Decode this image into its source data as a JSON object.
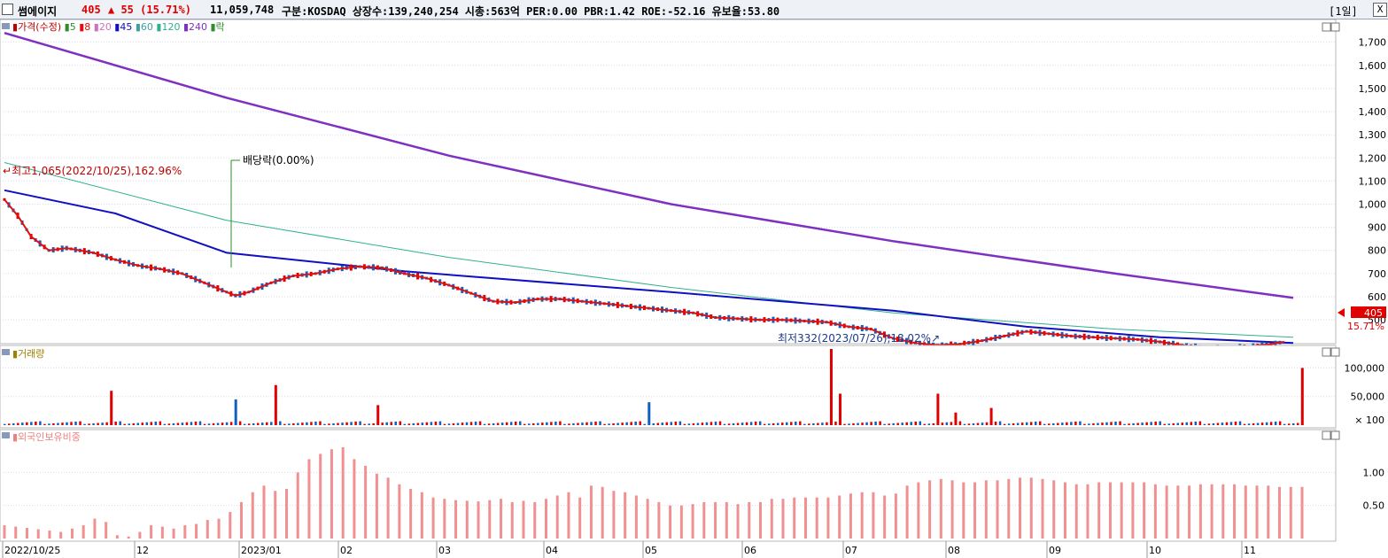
{
  "header": {
    "name": "썸에이지",
    "price": "405",
    "change": "▲ 55 (15.71%)",
    "volume": "11,059,748",
    "info": "구분:KOSDAQ 상장수:139,240,254 시총:563억 PER:0.00 PBR:1.42 ROE:-52.16 유보율:53.80",
    "period": "[1일]",
    "close_label": "X"
  },
  "legend": {
    "price": "가격(수정)",
    "ma": [
      {
        "label": "5",
        "color": "#2e8b2e"
      },
      {
        "label": "8",
        "color": "#e01010"
      },
      {
        "label": "20",
        "color": "#d070c0"
      },
      {
        "label": "45",
        "color": "#1010c0"
      },
      {
        "label": "60",
        "color": "#40a0a0"
      },
      {
        "label": "120",
        "color": "#30b090"
      },
      {
        "label": "240",
        "color": "#8030c0"
      }
    ],
    "ex_div": "락",
    "volume": "거래량",
    "foreign": "외국인보유비중"
  },
  "annotations": {
    "high": "최고1,065(2022/10/25),162.96%",
    "low": "최저332(2023/07/26),18.02%",
    "ex_dividend": "배당락(0.00%)",
    "current_price": "405",
    "current_change": "15.71%"
  },
  "chart_data": [
    {
      "type": "candlestick",
      "title": "가격(수정)",
      "y_ticks": [
        "1,700",
        "1,600",
        "1,500",
        "1,400",
        "1,300",
        "1,200",
        "1,100",
        "1,000",
        "900",
        "800",
        "700",
        "600",
        "500"
      ],
      "ylim": [
        420,
        1760
      ],
      "x_labels": [
        "2022/10/25",
        "12",
        "2023/01",
        "02",
        "03",
        "04",
        "05",
        "06",
        "07",
        "08",
        "09",
        "10",
        "11"
      ],
      "close_path": [
        [
          0,
          1020
        ],
        [
          3,
          950
        ],
        [
          6,
          860
        ],
        [
          10,
          800
        ],
        [
          14,
          810
        ],
        [
          20,
          790
        ],
        [
          25,
          760
        ],
        [
          30,
          735
        ],
        [
          35,
          720
        ],
        [
          40,
          700
        ],
        [
          45,
          660
        ],
        [
          50,
          620
        ],
        [
          52,
          605
        ],
        [
          55,
          620
        ],
        [
          60,
          660
        ],
        [
          65,
          690
        ],
        [
          70,
          700
        ],
        [
          75,
          720
        ],
        [
          80,
          730
        ],
        [
          85,
          725
        ],
        [
          90,
          700
        ],
        [
          95,
          680
        ],
        [
          100,
          650
        ],
        [
          105,
          615
        ],
        [
          110,
          580
        ],
        [
          115,
          575
        ],
        [
          120,
          590
        ],
        [
          125,
          590
        ],
        [
          130,
          580
        ],
        [
          135,
          570
        ],
        [
          140,
          560
        ],
        [
          145,
          550
        ],
        [
          150,
          540
        ],
        [
          155,
          530
        ],
        [
          160,
          510
        ],
        [
          165,
          505
        ],
        [
          170,
          500
        ],
        [
          175,
          500
        ],
        [
          180,
          495
        ],
        [
          185,
          490
        ],
        [
          190,
          470
        ],
        [
          195,
          460
        ],
        [
          200,
          420
        ],
        [
          205,
          400
        ],
        [
          210,
          390
        ],
        [
          215,
          395
        ],
        [
          220,
          410
        ],
        [
          225,
          430
        ],
        [
          230,
          450
        ],
        [
          235,
          440
        ],
        [
          240,
          430
        ],
        [
          245,
          425
        ],
        [
          250,
          420
        ],
        [
          255,
          415
        ],
        [
          260,
          405
        ],
        [
          265,
          390
        ],
        [
          270,
          380
        ],
        [
          275,
          378
        ],
        [
          280,
          385
        ],
        [
          285,
          395
        ],
        [
          288,
          405
        ]
      ],
      "series": [
        {
          "name": "240",
          "values": [
            [
              0,
              1740
            ],
            [
              50,
              1460
            ],
            [
              100,
              1210
            ],
            [
              150,
              1000
            ],
            [
              200,
              840
            ],
            [
              250,
              700
            ],
            [
              290,
              595
            ]
          ]
        },
        {
          "name": "120",
          "values": [
            [
              0,
              1180
            ],
            [
              50,
              930
            ],
            [
              100,
              770
            ],
            [
              150,
              640
            ],
            [
              200,
              530
            ],
            [
              250,
              460
            ],
            [
              290,
              425
            ]
          ]
        },
        {
          "name": "45",
          "values": [
            [
              0,
              1060
            ],
            [
              25,
              960
            ],
            [
              50,
              790
            ],
            [
              90,
              710
            ],
            [
              150,
              620
            ],
            [
              200,
              540
            ],
            [
              230,
              470
            ],
            [
              260,
              425
            ],
            [
              290,
              400
            ]
          ]
        }
      ]
    },
    {
      "type": "bar",
      "title": "거래량",
      "y_ticks": [
        "100,000",
        "50,000"
      ],
      "y_unit": "× 100",
      "ylim": [
        0,
        130000
      ],
      "peaks": [
        {
          "x": 24,
          "value": 60000
        },
        {
          "x": 52,
          "value": 45000
        },
        {
          "x": 61,
          "value": 70000
        },
        {
          "x": 84,
          "value": 35000
        },
        {
          "x": 145,
          "value": 40000
        },
        {
          "x": 186,
          "value": 135000
        },
        {
          "x": 188,
          "value": 55000
        },
        {
          "x": 210,
          "value": 55000
        },
        {
          "x": 214,
          "value": 22000
        },
        {
          "x": 222,
          "value": 30000
        },
        {
          "x": 292,
          "value": 100000
        }
      ]
    },
    {
      "type": "bar",
      "title": "외국인보유비중",
      "y_ticks": [
        "1.00",
        "0.50"
      ],
      "ylim": [
        0,
        1.5
      ],
      "values": [
        0.2,
        0.18,
        0.16,
        0.14,
        0.12,
        0.1,
        0.15,
        0.2,
        0.3,
        0.25,
        0.05,
        0.03,
        0.1,
        0.2,
        0.18,
        0.15,
        0.2,
        0.22,
        0.28,
        0.3,
        0.4,
        0.55,
        0.7,
        0.8,
        0.72,
        0.75,
        1.0,
        1.2,
        1.28,
        1.35,
        1.38,
        1.2,
        1.1,
        0.98,
        0.92,
        0.82,
        0.75,
        0.7,
        0.62,
        0.6,
        0.58,
        0.57,
        0.56,
        0.58,
        0.6,
        0.55,
        0.57,
        0.55,
        0.6,
        0.65,
        0.7,
        0.62,
        0.8,
        0.78,
        0.72,
        0.7,
        0.65,
        0.6,
        0.55,
        0.5,
        0.5,
        0.52,
        0.55,
        0.55,
        0.55,
        0.52,
        0.55,
        0.55,
        0.6,
        0.6,
        0.62,
        0.62,
        0.62,
        0.62,
        0.65,
        0.68,
        0.7,
        0.7,
        0.65,
        0.68,
        0.8,
        0.85,
        0.88,
        0.9,
        0.88,
        0.85,
        0.85,
        0.88,
        0.88,
        0.9,
        0.92,
        0.92,
        0.9,
        0.88,
        0.85,
        0.82,
        0.82,
        0.85,
        0.85,
        0.85,
        0.85,
        0.85,
        0.82,
        0.8,
        0.8,
        0.8,
        0.82,
        0.82,
        0.82,
        0.82,
        0.8,
        0.8,
        0.8,
        0.78,
        0.78,
        0.78
      ]
    }
  ]
}
